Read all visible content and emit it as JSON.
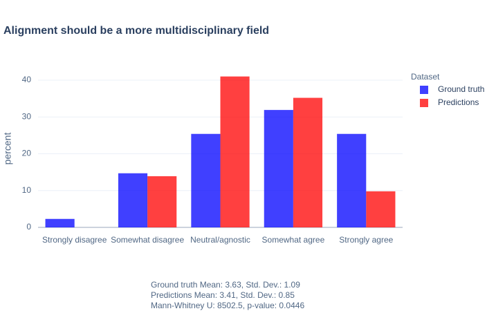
{
  "chart_data": {
    "type": "bar",
    "title": "Alignment should be a more multidisciplinary field",
    "y_label": "percent",
    "categories": [
      "Strongly disagree",
      "Somewhat disagree",
      "Neutral/agnostic",
      "Somewhat agree",
      "Strongly agree"
    ],
    "series": [
      {
        "name": "Ground truth",
        "color": "rgba(0,0,255,0.75)",
        "values": [
          2.3,
          14.7,
          25.4,
          31.9,
          25.4
        ]
      },
      {
        "name": "Predictions",
        "color": "rgba(255,0,0,0.75)",
        "values": [
          0,
          13.9,
          41,
          35.2,
          9.8
        ]
      }
    ],
    "legend_title": "Dataset",
    "ylim": [
      0,
      43
    ],
    "yticks": [
      0,
      10,
      20,
      30,
      40
    ],
    "grid": true,
    "annotations": [
      "Ground truth Mean: 3.63, Std. Dev.: 1.09",
      "Predictions Mean: 3.41, Std. Dev.: 0.85",
      "Mann-Whitney U: 8502.5, p-value: 0.0446"
    ]
  }
}
